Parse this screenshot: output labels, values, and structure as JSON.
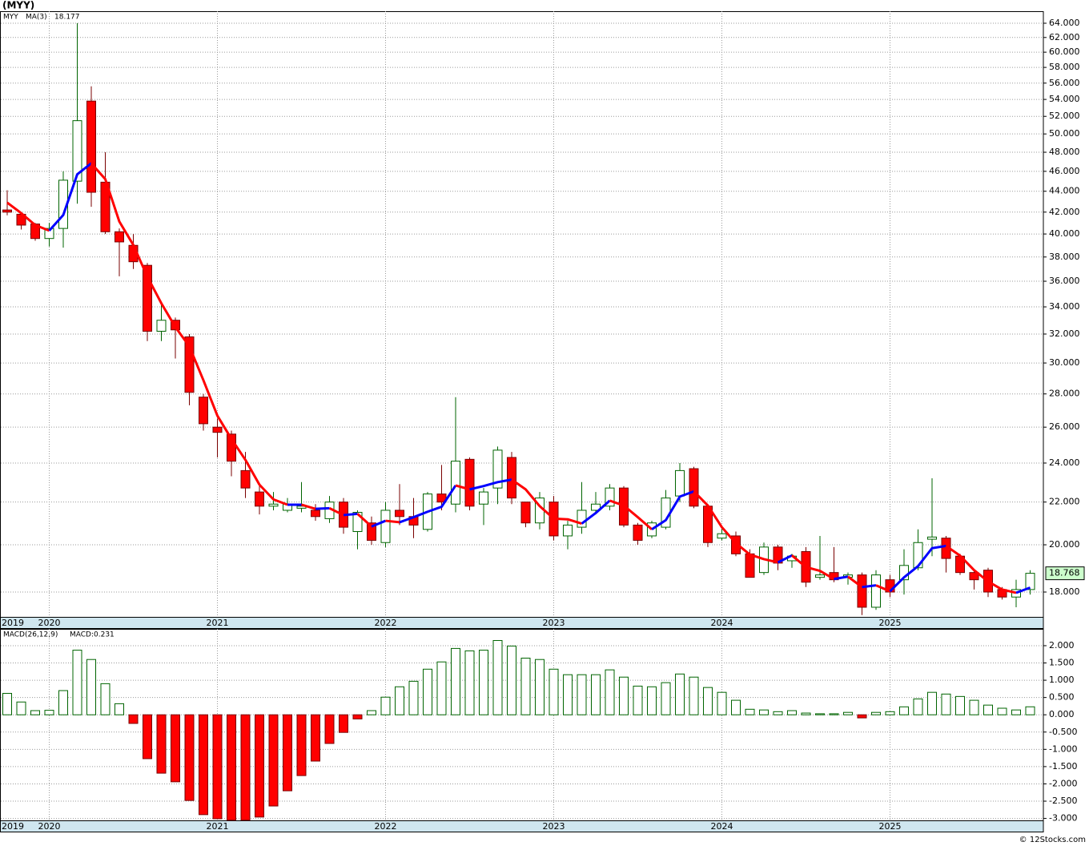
{
  "chart_data": [
    {
      "type": "candlestick",
      "title": "(MYY)",
      "log_scale": true,
      "grid": true,
      "categories": [
        "2019",
        null,
        null,
        "2020",
        null,
        null,
        null,
        null,
        null,
        null,
        null,
        null,
        null,
        null,
        null,
        "2021",
        null,
        null,
        null,
        null,
        null,
        null,
        null,
        null,
        null,
        null,
        null,
        "2022",
        null,
        null,
        null,
        null,
        null,
        null,
        null,
        null,
        null,
        null,
        null,
        "2023",
        null,
        null,
        null,
        null,
        null,
        null,
        null,
        null,
        null,
        null,
        null,
        "2024",
        null,
        null,
        null,
        null,
        null,
        null,
        null,
        null,
        null,
        null,
        null,
        "2025",
        null,
        null,
        null,
        null,
        null,
        null,
        null,
        null,
        null,
        null
      ],
      "ylim": [
        17.03,
        65.74
      ],
      "yticks": [
        {
          "value": 18,
          "label": "18.000"
        },
        {
          "value": 20,
          "label": "20.000"
        },
        {
          "value": 22,
          "label": "22.000"
        },
        {
          "value": 24,
          "label": "24.000"
        },
        {
          "value": 26,
          "label": "26.000"
        },
        {
          "value": 28,
          "label": "28.000"
        },
        {
          "value": 30,
          "label": "30.000"
        },
        {
          "value": 32,
          "label": "32.000"
        },
        {
          "value": 34,
          "label": "34.000"
        },
        {
          "value": 36,
          "label": "36.000"
        },
        {
          "value": 38,
          "label": "38.000"
        },
        {
          "value": 40,
          "label": "40.000"
        },
        {
          "value": 42,
          "label": "42.000"
        },
        {
          "value": 44,
          "label": "44.000"
        },
        {
          "value": 46,
          "label": "46.000"
        },
        {
          "value": 48,
          "label": "48.000"
        },
        {
          "value": 50,
          "label": "50.000"
        },
        {
          "value": 52,
          "label": "52.000"
        },
        {
          "value": 54,
          "label": "54.000"
        },
        {
          "value": 56,
          "label": "56.000"
        },
        {
          "value": 58,
          "label": "58.000"
        },
        {
          "value": 60,
          "label": "60.000"
        },
        {
          "value": 62,
          "label": "62.000"
        },
        {
          "value": 64,
          "label": "64.000"
        }
      ],
      "series": [
        {
          "name": "MYY",
          "color": "#6b7b4b",
          "up_color": "#ffffff",
          "up_edge": "#006400",
          "down_color": "#ff0000",
          "down_edge": "#7a0000",
          "label_box_color": "#ccffcc",
          "open": [
            42.2,
            41.8,
            40.9,
            39.6,
            40.5,
            45,
            53.8,
            44.9,
            40.2,
            39,
            37.3,
            32.2,
            33,
            31.8,
            27.8,
            26,
            25.6,
            23.6,
            22.5,
            21.8,
            21.6,
            21.7,
            21.6,
            21.2,
            22,
            20.6,
            21,
            20.1,
            21.6,
            21.3,
            20.7,
            22.4,
            21.9,
            24.2,
            21.9,
            22.7,
            24.3,
            22,
            21,
            22,
            20.4,
            20.8,
            21.6,
            21.8,
            22.7,
            20.9,
            20.4,
            20.8,
            22.3,
            23.7,
            21.8,
            20.3,
            20.4,
            19.6,
            18.8,
            19.9,
            19.3,
            19.7,
            18.6,
            18.8,
            18.6,
            18.7,
            17.4,
            18.5,
            18.5,
            19,
            20.25,
            20.3,
            19.5,
            18.8,
            18.9,
            18.1,
            17.8,
            18.1
          ],
          "high": [
            44.1,
            42,
            41,
            41,
            46,
            64,
            55.6,
            48,
            40.5,
            40,
            37.5,
            34.3,
            33.2,
            32,
            28,
            26.5,
            25.8,
            24.6,
            22.8,
            22.5,
            22.2,
            23,
            21.9,
            22.3,
            22.2,
            21.6,
            21.3,
            22,
            22.9,
            22.2,
            22.5,
            23.9,
            27.8,
            24.3,
            22.7,
            24.9,
            24.6,
            22,
            22.5,
            22.3,
            21.1,
            23,
            22.5,
            22.9,
            22.8,
            21,
            21.1,
            22.6,
            24,
            23.8,
            21.9,
            20.8,
            20.6,
            19.8,
            20.1,
            20,
            19.6,
            19.9,
            20.4,
            19.9,
            18.8,
            18.8,
            18.9,
            18.7,
            19.8,
            20.7,
            23.2,
            20.4,
            19.6,
            18.9,
            19,
            18.2,
            18.5,
            18.9
          ],
          "low": [
            41.7,
            40.4,
            39.4,
            38.9,
            38.8,
            42.8,
            42.5,
            40,
            36.4,
            37,
            31.5,
            31.5,
            30.3,
            27.3,
            25.8,
            24.3,
            23.3,
            22.2,
            21.4,
            21.6,
            21.5,
            21.5,
            21.1,
            21,
            20.5,
            19.8,
            20,
            19.9,
            20.9,
            20.3,
            20.6,
            21.6,
            21.5,
            21.6,
            20.9,
            21.9,
            21.9,
            20.8,
            20.7,
            20.2,
            19.8,
            20.5,
            21.4,
            21.6,
            20.8,
            20,
            20.3,
            20.7,
            22,
            21.7,
            19.9,
            20.2,
            19.5,
            18.6,
            18.7,
            18.9,
            19,
            18.2,
            18.5,
            18.4,
            18.3,
            17.1,
            17.3,
            17.8,
            17.9,
            18.9,
            19.5,
            18.8,
            18.7,
            18.1,
            17.8,
            17.7,
            17.4,
            17.9
          ],
          "close": [
            42.0,
            40.8,
            39.6,
            40.5,
            45.1,
            51.5,
            43.9,
            40.2,
            39.3,
            37.6,
            32.2,
            33,
            32.3,
            28.1,
            26.2,
            25.7,
            24.1,
            22.7,
            21.8,
            21.9,
            21.9,
            21.8,
            21.3,
            22,
            20.8,
            21.5,
            20.2,
            21.6,
            21.3,
            20.9,
            22.4,
            22,
            24.1,
            21.8,
            22.5,
            24.7,
            22.2,
            21,
            22.2,
            20.4,
            20.9,
            21.6,
            21.9,
            22.7,
            20.9,
            20.2,
            21,
            22.2,
            23.6,
            21.8,
            20.1,
            20.5,
            19.6,
            18.6,
            19.9,
            19.2,
            19.5,
            18.4,
            18.7,
            18.5,
            18.7,
            17.4,
            18.7,
            18,
            19.1,
            20.1,
            20.35,
            19.4,
            18.8,
            18.5,
            18,
            17.8,
            18.1,
            18.768
          ]
        },
        {
          "name": "MA(3)",
          "type": "line",
          "up_color": "#0000ff",
          "down_color": "#ff0000",
          "color": "#0000ff",
          "values": [
            42.9,
            41.9,
            40.8,
            40.3,
            41.73,
            45.7,
            46.83,
            45.2,
            41.13,
            39.03,
            36.37,
            34.27,
            32.5,
            31.13,
            28.87,
            26.67,
            25.33,
            24.17,
            22.87,
            22.13,
            21.87,
            21.87,
            21.67,
            21.7,
            21.37,
            21.43,
            20.83,
            21.1,
            21.03,
            21.27,
            21.53,
            21.77,
            22.83,
            22.63,
            22.8,
            23,
            23.13,
            22.63,
            21.8,
            21.2,
            21.17,
            20.97,
            21.47,
            22.07,
            21.83,
            21.27,
            20.7,
            21.13,
            22.27,
            22.53,
            21.83,
            20.8,
            20.07,
            19.57,
            19.37,
            19.23,
            19.53,
            19.03,
            18.87,
            18.53,
            18.63,
            18.2,
            18.27,
            18.03,
            18.6,
            19.07,
            19.85,
            19.95,
            19.52,
            18.9,
            18.43,
            18.1,
            17.97,
            18.177
          ]
        }
      ]
    },
    {
      "type": "bar",
      "grid": true,
      "source": "© 12Stocks.com",
      "categories": [
        "2019",
        null,
        null,
        "2020",
        null,
        null,
        null,
        null,
        null,
        null,
        null,
        null,
        null,
        null,
        null,
        "2021",
        null,
        null,
        null,
        null,
        null,
        null,
        null,
        null,
        null,
        null,
        null,
        "2022",
        null,
        null,
        null,
        null,
        null,
        null,
        null,
        null,
        null,
        null,
        null,
        "2023",
        null,
        null,
        null,
        null,
        null,
        null,
        null,
        null,
        null,
        null,
        null,
        "2024",
        null,
        null,
        null,
        null,
        null,
        null,
        null,
        null,
        null,
        null,
        null,
        "2025",
        null,
        null,
        null,
        null,
        null,
        null,
        null,
        null,
        null,
        null
      ],
      "ylim": [
        -3.056,
        2.486
      ],
      "yticks": [
        {
          "value": -3,
          "label": "-3.000"
        },
        {
          "value": -2.5,
          "label": "-2.500"
        },
        {
          "value": -2,
          "label": "-2.000"
        },
        {
          "value": -1.5,
          "label": "-1.500"
        },
        {
          "value": -1,
          "label": "-1.000"
        },
        {
          "value": -0.5,
          "label": "-0.500"
        },
        {
          "value": 0,
          "label": "0.000"
        },
        {
          "value": 0.5,
          "label": "0.500"
        },
        {
          "value": 1,
          "label": "1.000"
        },
        {
          "value": 1.5,
          "label": "1.500"
        },
        {
          "value": 2,
          "label": "2.000"
        }
      ],
      "series": [
        {
          "name": "MACD(26,12,9)",
          "legend_label": "MACD:0.231",
          "name_color": "#000000",
          "legend_color": "#0000ff",
          "up_color": "#ffffff",
          "up_edge": "#006400",
          "down_color": "#ff0000",
          "down_edge": "#7a0000",
          "values": [
            0.62,
            0.37,
            0.12,
            0.13,
            0.7,
            1.87,
            1.6,
            0.9,
            0.32,
            -0.25,
            -1.27,
            -1.69,
            -1.94,
            -2.48,
            -2.89,
            -3.01,
            -3.05,
            -3.05,
            -2.96,
            -2.64,
            -2.2,
            -1.76,
            -1.34,
            -0.83,
            -0.51,
            -0.12,
            0.12,
            0.51,
            0.81,
            0.97,
            1.32,
            1.53,
            1.92,
            1.85,
            1.87,
            2.15,
            1.99,
            1.64,
            1.6,
            1.32,
            1.16,
            1.16,
            1.16,
            1.3,
            1.09,
            0.83,
            0.81,
            0.93,
            1.18,
            1.09,
            0.79,
            0.65,
            0.42,
            0.16,
            0.14,
            0.09,
            0.12,
            0.05,
            0.03,
            0.03,
            0.07,
            -0.09,
            0.07,
            0.09,
            0.23,
            0.46,
            0.65,
            0.6,
            0.53,
            0.42,
            0.28,
            0.19,
            0.14,
            0.231
          ]
        }
      ]
    }
  ]
}
